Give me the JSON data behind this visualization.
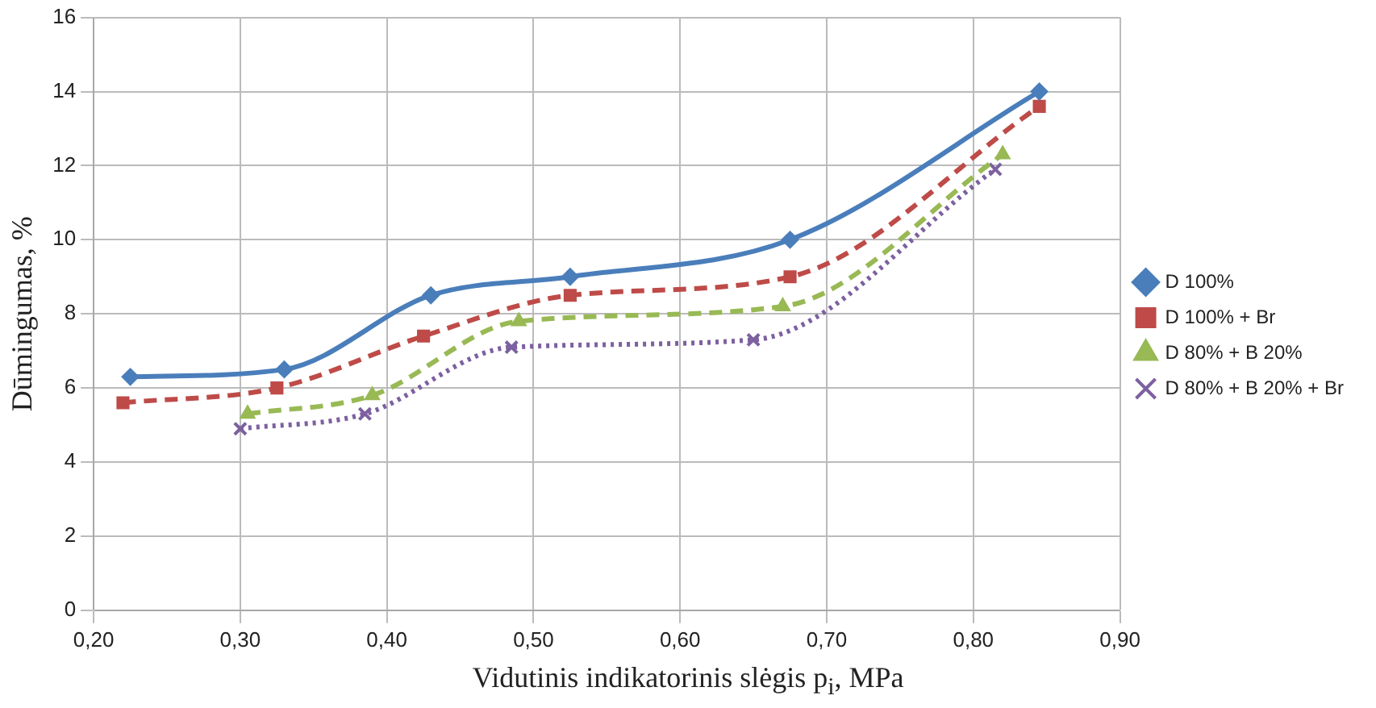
{
  "chart_data": {
    "type": "line",
    "xlabel": "Vidutinis indikatorinis slėgis p$_{i}$, MPa",
    "ylabel": "Dūmingumas, %",
    "xlim": [
      0.2,
      0.9
    ],
    "xticks": [
      {
        "value": 0.2,
        "label": "0,20"
      },
      {
        "value": 0.3,
        "label": "0,30"
      },
      {
        "value": 0.4,
        "label": "0,40"
      },
      {
        "value": 0.5,
        "label": "0,50"
      },
      {
        "value": 0.6,
        "label": "0,60"
      },
      {
        "value": 0.7,
        "label": "0,70"
      },
      {
        "value": 0.8,
        "label": "0,80"
      },
      {
        "value": 0.9,
        "label": "0,90"
      }
    ],
    "ylim": [
      0,
      16
    ],
    "yticks": [
      0,
      2,
      4,
      6,
      8,
      10,
      12,
      14,
      16
    ],
    "grid": true,
    "legend": "right",
    "series": [
      {
        "name": "D 100%",
        "color": "#4a7ebb",
        "marker": "diamond",
        "line_style": "solid",
        "x": [
          0.225,
          0.33,
          0.43,
          0.525,
          0.675,
          0.845
        ],
        "values": [
          6.3,
          6.5,
          8.5,
          9.0,
          10.0,
          14.0
        ]
      },
      {
        "name": "D 100% + Br",
        "color": "#be4b48",
        "marker": "square",
        "line_style": "dashed",
        "x": [
          0.22,
          0.325,
          0.425,
          0.525,
          0.675,
          0.845
        ],
        "values": [
          5.6,
          6.0,
          7.4,
          8.5,
          9.0,
          13.6
        ]
      },
      {
        "name": "D 80% + B 20%",
        "color": "#98b954",
        "marker": "triangle",
        "line_style": "dashed",
        "x": [
          0.305,
          0.39,
          0.49,
          0.67,
          0.82
        ],
        "values": [
          5.3,
          5.8,
          7.8,
          8.2,
          12.3
        ]
      },
      {
        "name": "D 80% + B 20% + Br",
        "color": "#7d60a0",
        "marker": "cross",
        "line_style": "dotted",
        "x": [
          0.3,
          0.385,
          0.485,
          0.65,
          0.815
        ],
        "values": [
          4.9,
          5.3,
          7.1,
          7.3,
          11.9
        ]
      }
    ]
  }
}
